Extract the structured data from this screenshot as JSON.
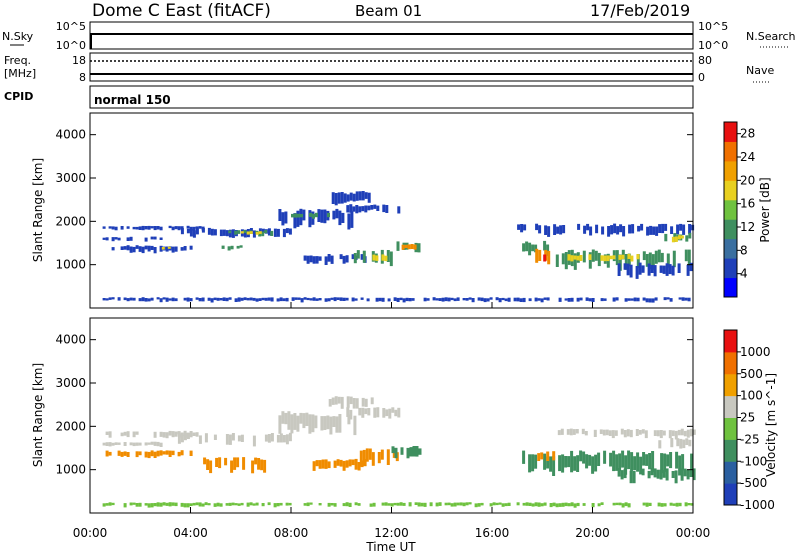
{
  "header": {
    "station": "Dome C East (fitACF)",
    "beam": "Beam 01",
    "date": "17/Feb/2019"
  },
  "nsky_panel": {
    "left_label": "N.Sky",
    "left_ticks": [
      "10^5",
      "10^0"
    ],
    "right_label": "N.Search",
    "right_ticks": [
      "10^5",
      "10^0"
    ]
  },
  "freq_panel": {
    "left_label": "Freq.",
    "left_unit": "[MHz]",
    "left_ticks": [
      "18",
      "8"
    ],
    "right_label": "Nave",
    "right_ticks": [
      "80",
      "0"
    ]
  },
  "cpid_panel": {
    "label": "CPID",
    "mode": "normal 150"
  },
  "time_axis": {
    "label": "Time UT",
    "ticks": [
      "00:00",
      "04:00",
      "08:00",
      "12:00",
      "16:00",
      "20:00",
      "00:00"
    ]
  },
  "colors": {
    "blue": "#1f3fb8",
    "dark_blue": "#1a2fa0",
    "green": "#3f8f5f",
    "light_green": "#6fc23f",
    "yellow": "#e8d020",
    "orange": "#f08c00",
    "red": "#e81010",
    "grey": "#c8c8c0"
  },
  "chart_data": [
    {
      "type": "heatmap",
      "name": "power",
      "ylabel": "Slant Range [km]",
      "ylim": [
        0,
        4500
      ],
      "y_ticks": [
        "1000",
        "2000",
        "3000",
        "4000"
      ],
      "xlim_hours": [
        0,
        24
      ],
      "colorbar": {
        "label": "Power [dB]",
        "ticks": [
          "4",
          "8",
          "12",
          "16",
          "20",
          "24",
          "28"
        ],
        "range": [
          0,
          30
        ]
      },
      "patches": [
        {
          "t0": 0.5,
          "t1": 4.5,
          "r0": 1800,
          "r1": 1900,
          "level": "blue"
        },
        {
          "t0": 0.5,
          "t1": 3.0,
          "r0": 1550,
          "r1": 1650,
          "level": "blue"
        },
        {
          "t0": 3.5,
          "t1": 8.0,
          "r0": 1650,
          "r1": 1850,
          "level": "blue"
        },
        {
          "t0": 5.5,
          "t1": 7.2,
          "r0": 1680,
          "r1": 1800,
          "level": "green"
        },
        {
          "t0": 6.0,
          "t1": 6.8,
          "r0": 1700,
          "r1": 1780,
          "level": "yellow"
        },
        {
          "t0": 7.5,
          "t1": 10.5,
          "r0": 1900,
          "r1": 2300,
          "level": "blue"
        },
        {
          "t0": 8.0,
          "t1": 9.5,
          "r0": 2050,
          "r1": 2200,
          "level": "green"
        },
        {
          "t0": 9.5,
          "t1": 11.2,
          "r0": 2400,
          "r1": 2700,
          "level": "blue"
        },
        {
          "t0": 10.2,
          "t1": 12.3,
          "r0": 2200,
          "r1": 2400,
          "level": "blue"
        },
        {
          "t0": 0.5,
          "t1": 4.0,
          "r0": 1300,
          "r1": 1450,
          "level": "blue"
        },
        {
          "t0": 2.5,
          "t1": 3.2,
          "r0": 1330,
          "r1": 1420,
          "level": "yellow"
        },
        {
          "t0": 5.0,
          "t1": 6.0,
          "r0": 1350,
          "r1": 1450,
          "level": "green"
        },
        {
          "t0": 8.5,
          "t1": 11.0,
          "r0": 1050,
          "r1": 1250,
          "level": "blue"
        },
        {
          "t0": 10.5,
          "t1": 12.0,
          "r0": 1000,
          "r1": 1350,
          "level": "green"
        },
        {
          "t0": 11.0,
          "t1": 11.8,
          "r0": 1100,
          "r1": 1250,
          "level": "yellow"
        },
        {
          "t0": 12.2,
          "t1": 13.2,
          "r0": 1300,
          "r1": 1550,
          "level": "green"
        },
        {
          "t0": 12.4,
          "t1": 12.9,
          "r0": 1350,
          "r1": 1480,
          "level": "orange"
        },
        {
          "t0": 17.2,
          "t1": 18.2,
          "r0": 1250,
          "r1": 1550,
          "level": "green"
        },
        {
          "t0": 17.6,
          "t1": 18.3,
          "r0": 1000,
          "r1": 1400,
          "level": "orange"
        },
        {
          "t0": 17.8,
          "t1": 18.2,
          "r0": 1050,
          "r1": 1250,
          "level": "red"
        },
        {
          "t0": 18.3,
          "t1": 24.0,
          "r0": 950,
          "r1": 1350,
          "level": "green"
        },
        {
          "t0": 19.0,
          "t1": 22.0,
          "r0": 1100,
          "r1": 1250,
          "level": "yellow"
        },
        {
          "t0": 21.0,
          "t1": 24.0,
          "r0": 750,
          "r1": 1050,
          "level": "blue"
        },
        {
          "t0": 17.0,
          "t1": 24.0,
          "r0": 1700,
          "r1": 1950,
          "level": "blue"
        },
        {
          "t0": 22.5,
          "t1": 24.0,
          "r0": 1500,
          "r1": 1750,
          "level": "green"
        },
        {
          "t0": 22.8,
          "t1": 23.6,
          "r0": 1550,
          "r1": 1680,
          "level": "yellow"
        },
        {
          "t0": 0.5,
          "t1": 24.0,
          "r0": 150,
          "r1": 250,
          "level": "blue"
        }
      ]
    },
    {
      "type": "heatmap",
      "name": "velocity",
      "ylabel": "Slant Range [km]",
      "ylim": [
        0,
        4500
      ],
      "y_ticks": [
        "1000",
        "2000",
        "3000",
        "4000"
      ],
      "xlim_hours": [
        0,
        24
      ],
      "colorbar": {
        "label": "Velocity [m s^-1]",
        "ticks": [
          "1000",
          "500",
          "100",
          "25",
          "-25",
          "-100",
          "-500",
          "-1000"
        ]
      },
      "patches": [
        {
          "t0": 0.5,
          "t1": 4.5,
          "r0": 1750,
          "r1": 1900,
          "level": "grey"
        },
        {
          "t0": 0.5,
          "t1": 3.0,
          "r0": 1550,
          "r1": 1650,
          "level": "grey"
        },
        {
          "t0": 3.5,
          "t1": 8.0,
          "r0": 1600,
          "r1": 1850,
          "level": "grey"
        },
        {
          "t0": 7.5,
          "t1": 10.5,
          "r0": 1900,
          "r1": 2350,
          "level": "grey"
        },
        {
          "t0": 9.5,
          "t1": 11.2,
          "r0": 2400,
          "r1": 2700,
          "level": "grey"
        },
        {
          "t0": 10.2,
          "t1": 12.3,
          "r0": 2200,
          "r1": 2450,
          "level": "grey"
        },
        {
          "t0": 0.5,
          "t1": 4.0,
          "r0": 1300,
          "r1": 1450,
          "level": "orange"
        },
        {
          "t0": 4.5,
          "t1": 7.0,
          "r0": 1000,
          "r1": 1300,
          "level": "orange"
        },
        {
          "t0": 8.5,
          "t1": 11.0,
          "r0": 1000,
          "r1": 1250,
          "level": "orange"
        },
        {
          "t0": 10.5,
          "t1": 12.5,
          "r0": 1100,
          "r1": 1500,
          "level": "orange"
        },
        {
          "t0": 12.0,
          "t1": 13.2,
          "r0": 1300,
          "r1": 1550,
          "level": "green"
        },
        {
          "t0": 17.2,
          "t1": 24.0,
          "r0": 950,
          "r1": 1450,
          "level": "green"
        },
        {
          "t0": 17.8,
          "t1": 18.4,
          "r0": 1200,
          "r1": 1450,
          "level": "orange"
        },
        {
          "t0": 21.0,
          "t1": 24.0,
          "r0": 750,
          "r1": 1050,
          "level": "green"
        },
        {
          "t0": 18.5,
          "t1": 24.0,
          "r0": 1750,
          "r1": 1950,
          "level": "grey"
        },
        {
          "t0": 22.5,
          "t1": 24.0,
          "r0": 1500,
          "r1": 1750,
          "level": "grey"
        },
        {
          "t0": 0.5,
          "t1": 24.0,
          "r0": 150,
          "r1": 250,
          "level": "light_green"
        }
      ]
    }
  ]
}
